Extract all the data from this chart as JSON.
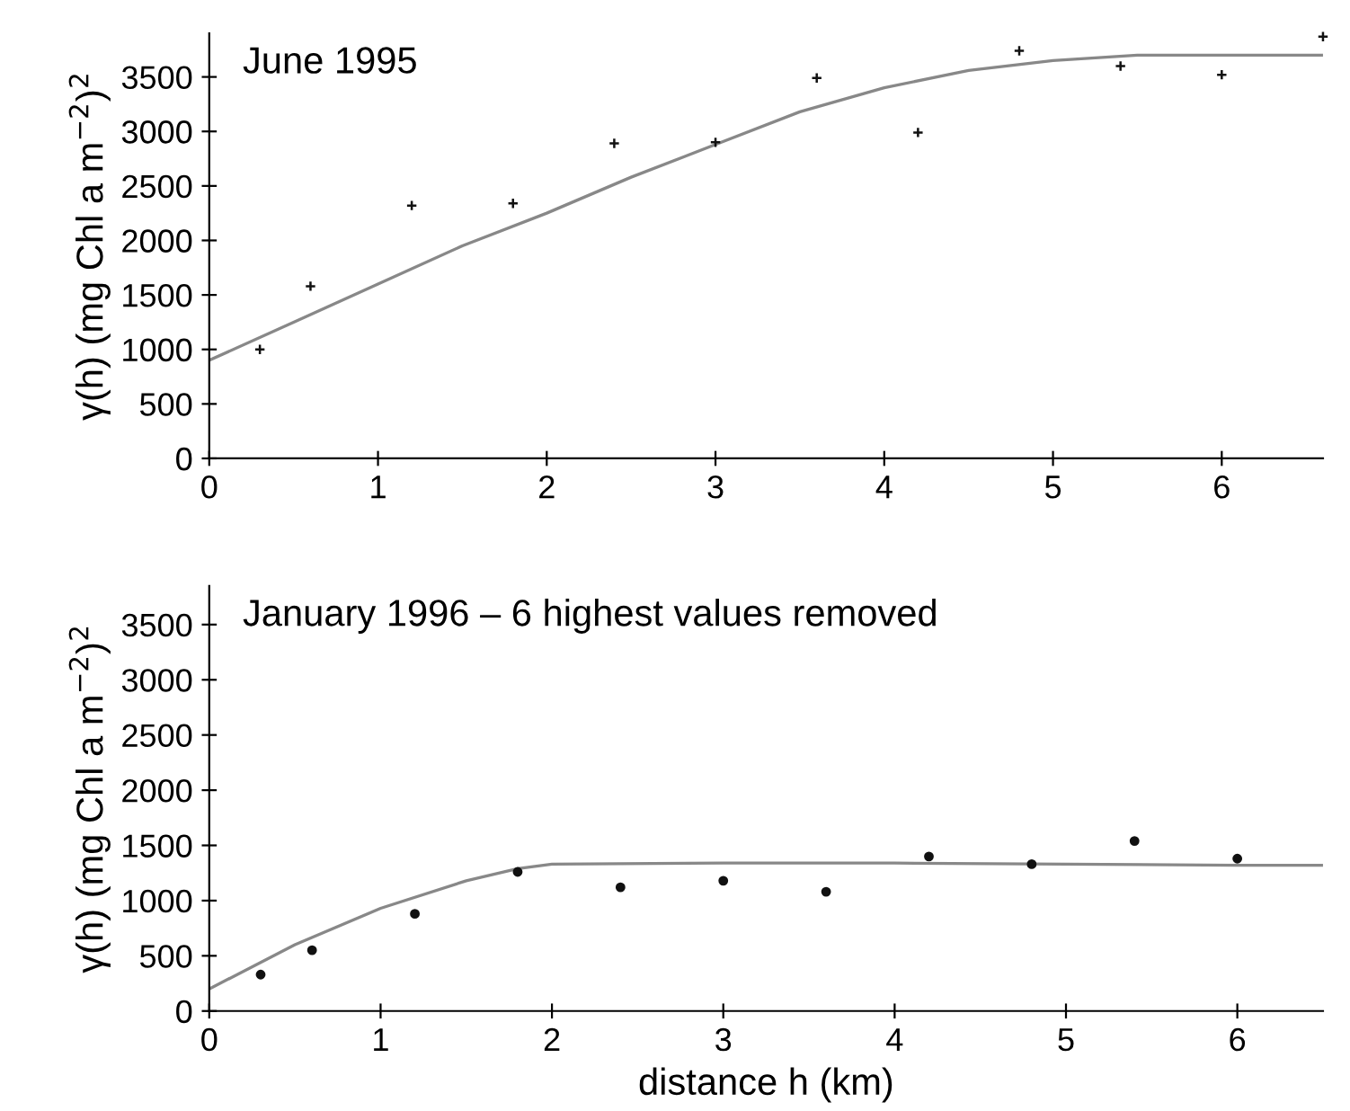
{
  "chart_data": [
    {
      "type": "scatter",
      "title": "June 1995",
      "ylabel": "γ(h) (mg Chl a m$^{−2}$)$^{2}$",
      "xlim": [
        0,
        6.6
      ],
      "ylim": [
        0,
        3900
      ],
      "xticks": [
        0,
        1,
        2,
        3,
        4,
        5,
        6
      ],
      "yticks": [
        0,
        500,
        1000,
        1500,
        2000,
        2500,
        3000,
        3500
      ],
      "grid": false,
      "series": [
        {
          "marker": "cross",
          "color": "#111111",
          "x": [
            0.3,
            0.6,
            1.2,
            1.8,
            2.4,
            3.0,
            3.6,
            4.2,
            4.8,
            5.4,
            6.0,
            6.6
          ],
          "values": [
            1000,
            1580,
            2320,
            2340,
            2890,
            2900,
            3490,
            2990,
            3740,
            3600,
            3520,
            3870
          ]
        },
        {
          "type": "line",
          "color": "#888888",
          "x": [
            0,
            0.5,
            1,
            1.5,
            2,
            2.5,
            3,
            3.5,
            4,
            4.5,
            5,
            5.5,
            6,
            6.6
          ],
          "values": [
            900,
            1250,
            1600,
            1950,
            2250,
            2580,
            2880,
            3180,
            3400,
            3560,
            3650,
            3700,
            3700,
            3700
          ]
        }
      ]
    },
    {
      "type": "scatter",
      "title": "January 1996 – 6 highest values removed",
      "xlabel": "distance h (km)",
      "ylabel": "γ(h) (mg Chl a m$^{−2}$)$^{2}$",
      "xlim": [
        0,
        6.5
      ],
      "ylim": [
        0,
        3850
      ],
      "xticks": [
        0,
        1,
        2,
        3,
        4,
        5,
        6
      ],
      "yticks": [
        0,
        500,
        1000,
        1500,
        2000,
        2500,
        3000,
        3500
      ],
      "grid": false,
      "series": [
        {
          "marker": "circle",
          "color": "#111111",
          "x": [
            0.3,
            0.6,
            1.2,
            1.8,
            2.4,
            3.0,
            3.6,
            4.2,
            4.8,
            5.4,
            6.0
          ],
          "values": [
            330,
            550,
            880,
            1260,
            1120,
            1180,
            1080,
            1400,
            1330,
            1540,
            1380
          ]
        },
        {
          "type": "line",
          "color": "#888888",
          "x": [
            0,
            0.5,
            1,
            1.5,
            1.8,
            2,
            3,
            4,
            5,
            6,
            6.5
          ],
          "values": [
            200,
            600,
            930,
            1180,
            1290,
            1330,
            1340,
            1340,
            1330,
            1320,
            1320
          ]
        }
      ]
    }
  ]
}
